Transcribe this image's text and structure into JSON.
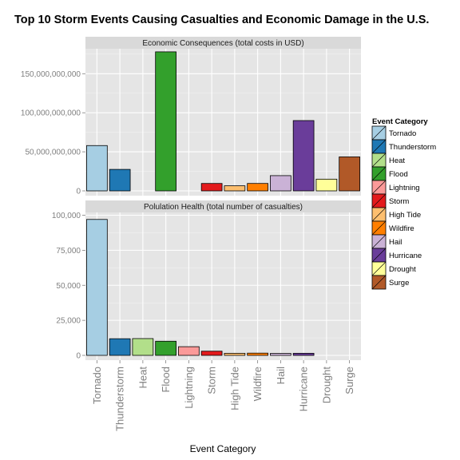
{
  "chart_data": {
    "type": "bar",
    "title": "Top 10 Storm Events Causing Casualties and Economic Damage in the U.S.",
    "xlabel": "Event Category",
    "categories": [
      "Tornado",
      "Thunderstorm",
      "Heat",
      "Flood",
      "Lightning",
      "Storm",
      "High Tide",
      "Wildfire",
      "Hail",
      "Hurricane",
      "Drought",
      "Surge"
    ],
    "colors": [
      "#a6cee3",
      "#1f78b4",
      "#b2df8a",
      "#33a02c",
      "#fb9a99",
      "#e31a1c",
      "#fdbf6f",
      "#ff7f00",
      "#cab2d6",
      "#6a3d9a",
      "#ffff99",
      "#b15928"
    ],
    "legend": {
      "title": "Event Category",
      "position": "right",
      "entries": [
        "Tornado",
        "Thunderstorm",
        "Heat",
        "Flood",
        "Lightning",
        "Storm",
        "High Tide",
        "Wildfire",
        "Hail",
        "Hurricane",
        "Drought",
        "Surge"
      ]
    },
    "grid": true,
    "panels": [
      {
        "strip": "Economic Consequences (total costs in USD)",
        "ylim": [
          0,
          182000000000
        ],
        "yticks": [
          0,
          50000000000,
          100000000000,
          150000000000
        ],
        "ytick_labels": [
          "0",
          "50,000,000,000",
          "100,000,000,000",
          "150,000,000,000"
        ],
        "values": [
          58000000000,
          27500000000,
          0,
          178000000000,
          0,
          9500000000,
          6500000000,
          9500000000,
          19500000000,
          90000000000,
          15000000000,
          43500000000
        ]
      },
      {
        "strip": "Polulation Health (total number of casualties)",
        "ylim": [
          0,
          102000
        ],
        "yticks": [
          0,
          25000,
          50000,
          75000,
          100000
        ],
        "ytick_labels": [
          "0",
          "25,000",
          "50,000",
          "75,000",
          "100,000"
        ],
        "values": [
          97000,
          11900,
          12000,
          10100,
          6200,
          3000,
          1500,
          1600,
          1400,
          1500,
          0,
          0
        ]
      }
    ]
  }
}
